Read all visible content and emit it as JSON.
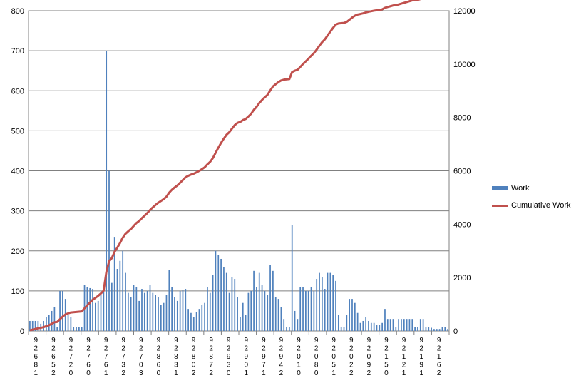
{
  "chart_data": {
    "type": "bar",
    "y_left": {
      "min": 0,
      "max": 800,
      "ticks": [
        0,
        100,
        200,
        300,
        400,
        500,
        600,
        700,
        800
      ]
    },
    "y_right": {
      "min": 0,
      "max": 12000,
      "ticks": [
        0,
        2000,
        4000,
        6000,
        8000,
        10000,
        12000
      ]
    },
    "grid": true,
    "legend_position": "right",
    "x_tick_labels": [
      "92681",
      "92652",
      "92720",
      "92760",
      "92761",
      "92732",
      "92703",
      "92860",
      "92831",
      "92802",
      "92872",
      "92930",
      "92901",
      "92971",
      "92942",
      "92010",
      "92080",
      "92051",
      "92022",
      "92092",
      "92150",
      "92121",
      "92191",
      "92162"
    ],
    "series": [
      {
        "name": "Work",
        "kind": "bar",
        "color": "#4f81bd",
        "values": [
          25,
          25,
          25,
          25,
          18,
          25,
          35,
          40,
          50,
          60,
          10,
          100,
          100,
          80,
          40,
          35,
          10,
          10,
          10,
          10,
          115,
          110,
          107,
          105,
          70,
          75,
          90,
          105,
          700,
          400,
          120,
          235,
          155,
          175,
          200,
          145,
          95,
          85,
          115,
          110,
          75,
          105,
          95,
          100,
          115,
          95,
          90,
          85,
          65,
          70,
          90,
          152,
          110,
          85,
          75,
          100,
          102,
          105,
          55,
          45,
          35,
          48,
          55,
          65,
          70,
          110,
          95,
          140,
          200,
          190,
          180,
          160,
          145,
          95,
          135,
          130,
          85,
          35,
          70,
          40,
          95,
          100,
          150,
          110,
          145,
          115,
          100,
          90,
          165,
          150,
          85,
          80,
          60,
          30,
          10,
          10,
          265,
          50,
          30,
          110,
          110,
          100,
          100,
          110,
          100,
          130,
          145,
          135,
          105,
          145,
          145,
          140,
          125,
          40,
          10,
          10,
          40,
          80,
          80,
          70,
          45,
          20,
          25,
          35,
          25,
          20,
          20,
          15,
          15,
          20,
          55,
          30,
          30,
          30,
          10,
          30,
          30,
          30,
          30,
          30,
          30,
          10,
          10,
          30,
          30,
          10,
          10,
          8,
          5,
          5,
          5,
          10,
          10,
          5
        ]
      },
      {
        "name": "Cumulative Work",
        "kind": "line",
        "color": "#c0504d",
        "values": [
          25,
          50,
          75,
          100,
          118,
          143,
          178,
          218,
          268,
          328,
          338,
          438,
          538,
          618,
          658,
          693,
          703,
          713,
          723,
          733,
          848,
          958,
          1065,
          1170,
          1240,
          1315,
          1405,
          1510,
          2210,
          2610,
          2730,
          2965,
          3120,
          3295,
          3495,
          3640,
          3735,
          3820,
          3935,
          4045,
          4120,
          4225,
          4320,
          4420,
          4535,
          4630,
          4720,
          4805,
          4870,
          4940,
          5030,
          5182,
          5292,
          5377,
          5452,
          5552,
          5654,
          5759,
          5814,
          5859,
          5894,
          5942,
          5997,
          6062,
          6132,
          6242,
          6337,
          6477,
          6677,
          6867,
          7047,
          7207,
          7352,
          7447,
          7582,
          7712,
          7797,
          7832,
          7902,
          7942,
          8037,
          8137,
          8287,
          8397,
          8542,
          8657,
          8757,
          8847,
          9012,
          9162,
          9247,
          9327,
          9387,
          9417,
          9427,
          9437,
          9702,
          9752,
          9782,
          9892,
          10002,
          10102,
          10202,
          10312,
          10412,
          10542,
          10687,
          10822,
          10927,
          11072,
          11217,
          11357,
          11482,
          11522,
          11532,
          11542,
          11582,
          11662,
          11742,
          11812,
          11857,
          11877,
          11902,
          11937,
          11962,
          11982,
          12002,
          12017,
          12032,
          12052,
          12107,
          12137,
          12167,
          12197,
          12207,
          12237,
          12267,
          12297,
          12327,
          12357,
          12387,
          12397,
          12407,
          12437,
          12467,
          12477,
          12487,
          12495,
          12500,
          12505,
          12510,
          12520,
          12530,
          12535
        ]
      }
    ]
  }
}
